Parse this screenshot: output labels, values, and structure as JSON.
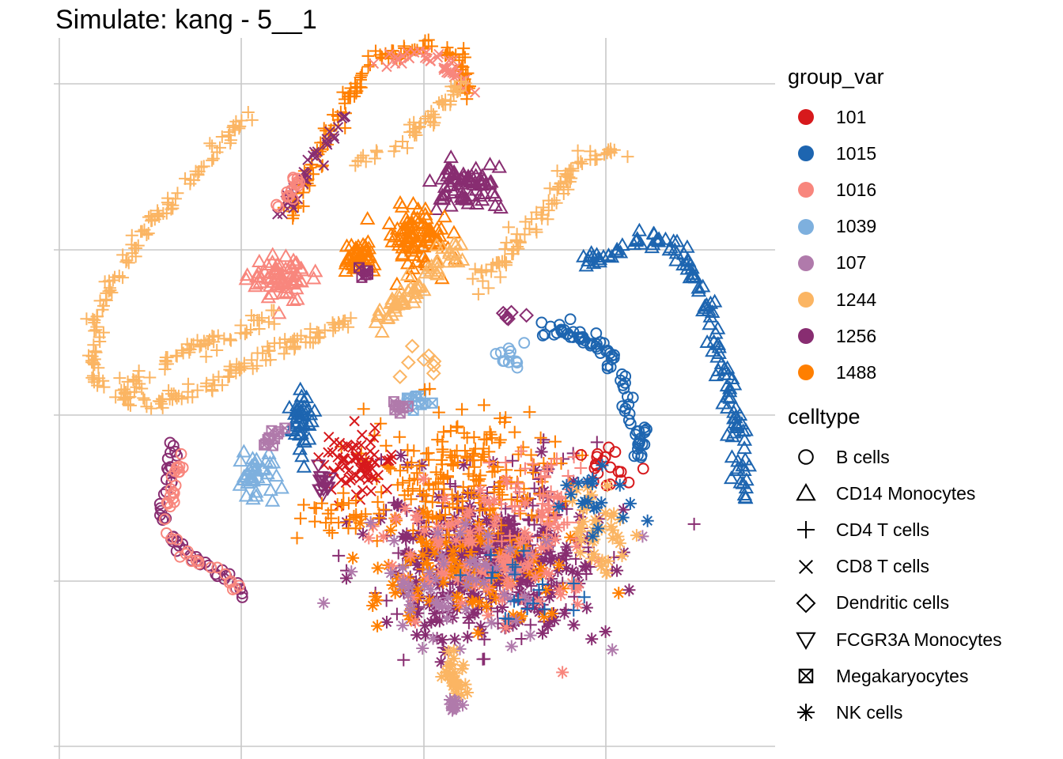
{
  "chart_data": {
    "type": "scatter",
    "title": "Simulate: kang - 5__1",
    "xlabel": "",
    "ylabel": "",
    "grid": true,
    "legend_placement": "right",
    "tick_labels_shown": false,
    "group_legend": {
      "title": "group_var",
      "entries": [
        {
          "label": "101",
          "color": "#d7191c"
        },
        {
          "label": "1015",
          "color": "#1d65b0"
        },
        {
          "label": "1016",
          "color": "#f8867d"
        },
        {
          "label": "1039",
          "color": "#7eb0de"
        },
        {
          "label": "107",
          "color": "#b07aab"
        },
        {
          "label": "1244",
          "color": "#fbb563"
        },
        {
          "label": "1256",
          "color": "#882d71"
        },
        {
          "label": "1488",
          "color": "#ff7f00"
        }
      ]
    },
    "shape_legend": {
      "title": "celltype",
      "entries": [
        {
          "label": "B cells",
          "shape": "circle"
        },
        {
          "label": "CD14 Monocytes",
          "shape": "triangle-up"
        },
        {
          "label": "CD4 T cells",
          "shape": "plus"
        },
        {
          "label": "CD8 T cells",
          "shape": "cross"
        },
        {
          "label": "Dendritic cells",
          "shape": "diamond"
        },
        {
          "label": "FCGR3A Monocytes",
          "shape": "triangle-down"
        },
        {
          "label": "Megakaryocytes",
          "shape": "square-cross"
        },
        {
          "label": "NK cells",
          "shape": "asterisk"
        }
      ]
    },
    "xlim": [
      0,
      100
    ],
    "ylim": [
      0,
      100
    ],
    "clusters": [
      {
        "group": "1244",
        "shape": "plus",
        "kind": "path",
        "n": 220,
        "spread": 1.1,
        "points": [
          [
            26,
            89
          ],
          [
            20,
            82
          ],
          [
            12,
            73
          ],
          [
            5,
            61
          ],
          [
            5,
            52
          ],
          [
            12,
            48
          ],
          [
            21,
            51
          ],
          [
            30,
            56
          ],
          [
            41,
            60
          ]
        ]
      },
      {
        "group": "1488",
        "shape": "plus",
        "kind": "path",
        "n": 130,
        "spread": 1.0,
        "points": [
          [
            32,
            75
          ],
          [
            36,
            83
          ],
          [
            40,
            91
          ],
          [
            44,
            97
          ],
          [
            51,
            99
          ],
          [
            56,
            97
          ],
          [
            57,
            92
          ]
        ]
      },
      {
        "group": "1016",
        "shape": "cross",
        "kind": "path",
        "n": 40,
        "spread": 1.2,
        "points": [
          [
            44,
            96
          ],
          [
            49,
            98
          ],
          [
            55,
            96
          ],
          [
            57,
            92
          ]
        ]
      },
      {
        "group": "1256",
        "shape": "cross",
        "kind": "path",
        "n": 35,
        "spread": 1.0,
        "points": [
          [
            31,
            75
          ],
          [
            34,
            80
          ],
          [
            37,
            85
          ],
          [
            40,
            89
          ]
        ]
      },
      {
        "group": "1016",
        "shape": "circle",
        "kind": "path",
        "n": 18,
        "spread": 0.8,
        "points": [
          [
            31,
            76
          ],
          [
            33,
            80
          ]
        ]
      },
      {
        "group": "1244",
        "shape": "plus",
        "kind": "path",
        "n": 50,
        "spread": 1.0,
        "points": [
          [
            41,
            82
          ],
          [
            47,
            85
          ],
          [
            51,
            88
          ],
          [
            54,
            91
          ],
          [
            56,
            94
          ]
        ]
      },
      {
        "group": "1256",
        "shape": "triangle-up",
        "kind": "blob",
        "n": 70,
        "cx": 57,
        "cy": 79,
        "rx": 5,
        "ry": 3
      },
      {
        "group": "1488",
        "shape": "triangle-up",
        "kind": "blob",
        "n": 90,
        "cx": 50,
        "cy": 72,
        "rx": 5,
        "ry": 4
      },
      {
        "group": "1488",
        "shape": "triangle-up",
        "kind": "blob",
        "n": 40,
        "cx": 42,
        "cy": 69,
        "rx": 3,
        "ry": 2
      },
      {
        "group": "1256",
        "shape": "square-cross",
        "kind": "blob",
        "n": 6,
        "cx": 43,
        "cy": 67,
        "rx": 1,
        "ry": 1
      },
      {
        "group": "1016",
        "shape": "triangle-up",
        "kind": "blob",
        "n": 70,
        "cx": 31,
        "cy": 66,
        "rx": 4,
        "ry": 3
      },
      {
        "group": "1244",
        "shape": "plus",
        "kind": "path",
        "n": 90,
        "spread": 1.4,
        "points": [
          [
            58,
            65
          ],
          [
            63,
            70
          ],
          [
            67,
            74
          ],
          [
            70,
            79
          ],
          [
            72,
            82
          ],
          [
            75,
            84
          ],
          [
            78,
            84
          ]
        ]
      },
      {
        "group": "1244",
        "shape": "triangle-up",
        "kind": "path",
        "n": 60,
        "spread": 1.5,
        "points": [
          [
            45,
            60
          ],
          [
            49,
            64
          ],
          [
            53,
            68
          ],
          [
            56,
            70
          ]
        ]
      },
      {
        "group": "1244",
        "shape": "plus",
        "kind": "path",
        "n": 60,
        "spread": 1.3,
        "points": [
          [
            10,
            51
          ],
          [
            14,
            54
          ],
          [
            18,
            56
          ],
          [
            24,
            58
          ],
          [
            30,
            61
          ]
        ]
      },
      {
        "group": "1015",
        "shape": "triangle-up",
        "kind": "path",
        "n": 130,
        "spread": 1.2,
        "points": [
          [
            73,
            68
          ],
          [
            78,
            70
          ],
          [
            83,
            72
          ],
          [
            87,
            70
          ],
          [
            90,
            64
          ],
          [
            92,
            57
          ],
          [
            94,
            49
          ],
          [
            95,
            41
          ],
          [
            96,
            35
          ]
        ]
      },
      {
        "group": "1015",
        "shape": "circle",
        "kind": "path",
        "n": 80,
        "spread": 1.1,
        "points": [
          [
            68,
            59
          ],
          [
            73,
            58
          ],
          [
            77,
            55
          ],
          [
            79,
            50
          ],
          [
            81,
            45
          ],
          [
            81,
            41
          ]
        ]
      },
      {
        "group": "1015",
        "shape": "triangle-up",
        "kind": "blob",
        "n": 40,
        "cx": 34,
        "cy": 45,
        "rx": 2,
        "ry": 6
      },
      {
        "group": "1039",
        "shape": "triangle-up",
        "kind": "blob",
        "n": 40,
        "cx": 27,
        "cy": 38,
        "rx": 3,
        "ry": 3
      },
      {
        "group": "107",
        "shape": "square-cross",
        "kind": "blob",
        "n": 10,
        "cx": 29,
        "cy": 43,
        "rx": 2,
        "ry": 2
      },
      {
        "group": "1039",
        "shape": "square-cross",
        "kind": "blob",
        "n": 10,
        "cx": 50,
        "cy": 49,
        "rx": 2,
        "ry": 1
      },
      {
        "group": "107",
        "shape": "square-cross",
        "kind": "blob",
        "n": 8,
        "cx": 47,
        "cy": 48,
        "rx": 2,
        "ry": 1
      },
      {
        "group": "1256",
        "shape": "circle",
        "kind": "path",
        "n": 50,
        "spread": 0.9,
        "points": [
          [
            16,
            43
          ],
          [
            15,
            38
          ],
          [
            14,
            33
          ],
          [
            17,
            28
          ],
          [
            20,
            26
          ],
          [
            23,
            24
          ],
          [
            26,
            21
          ]
        ]
      },
      {
        "group": "1016",
        "shape": "circle",
        "kind": "path",
        "n": 40,
        "spread": 0.9,
        "points": [
          [
            17,
            42
          ],
          [
            16,
            37
          ],
          [
            15,
            31
          ],
          [
            18,
            27
          ],
          [
            22,
            25
          ],
          [
            25,
            22
          ]
        ]
      },
      {
        "group": "1256",
        "shape": "asterisk",
        "kind": "blob",
        "n": 260,
        "cx": 60,
        "cy": 26,
        "rx": 15,
        "ry": 11
      },
      {
        "group": "1256",
        "shape": "plus",
        "kind": "blob",
        "n": 220,
        "cx": 60,
        "cy": 27,
        "rx": 15,
        "ry": 11
      },
      {
        "group": "1488",
        "shape": "plus",
        "kind": "blob",
        "n": 220,
        "cx": 57,
        "cy": 38,
        "rx": 14,
        "ry": 10
      },
      {
        "group": "1488",
        "shape": "asterisk",
        "kind": "blob",
        "n": 100,
        "cx": 55,
        "cy": 24,
        "rx": 14,
        "ry": 8
      },
      {
        "group": "1016",
        "shape": "asterisk",
        "kind": "blob",
        "n": 110,
        "cx": 62,
        "cy": 26,
        "rx": 15,
        "ry": 10
      },
      {
        "group": "107",
        "shape": "asterisk",
        "kind": "blob",
        "n": 60,
        "cx": 55,
        "cy": 24,
        "rx": 14,
        "ry": 9
      },
      {
        "group": "101",
        "shape": "cross",
        "kind": "blob",
        "n": 70,
        "cx": 42,
        "cy": 40,
        "rx": 5,
        "ry": 5
      },
      {
        "group": "1016",
        "shape": "plus",
        "kind": "blob",
        "n": 50,
        "cx": 68,
        "cy": 35,
        "rx": 7,
        "ry": 7
      },
      {
        "group": "101",
        "shape": "circle",
        "kind": "blob",
        "n": 20,
        "cx": 76,
        "cy": 40,
        "rx": 4,
        "ry": 4
      },
      {
        "group": "1244",
        "shape": "asterisk",
        "kind": "blob",
        "n": 40,
        "cx": 76,
        "cy": 30,
        "rx": 4,
        "ry": 6
      },
      {
        "group": "1015",
        "shape": "plus",
        "kind": "blob",
        "n": 20,
        "cx": 65,
        "cy": 22,
        "rx": 8,
        "ry": 5
      },
      {
        "group": "1244",
        "shape": "asterisk",
        "kind": "blob",
        "n": 30,
        "cx": 55,
        "cy": 10,
        "rx": 1.5,
        "ry": 4
      },
      {
        "group": "107",
        "shape": "asterisk",
        "kind": "blob",
        "n": 10,
        "cx": 55,
        "cy": 6,
        "rx": 1,
        "ry": 1.5
      },
      {
        "group": "1256",
        "shape": "triangle-down",
        "kind": "blob",
        "n": 14,
        "cx": 37,
        "cy": 37,
        "rx": 2,
        "ry": 3
      },
      {
        "group": "1244",
        "shape": "diamond",
        "kind": "blob",
        "n": 8,
        "cx": 51,
        "cy": 55,
        "rx": 3,
        "ry": 2
      },
      {
        "group": "1256",
        "shape": "diamond",
        "kind": "blob",
        "n": 6,
        "cx": 63,
        "cy": 61,
        "rx": 2,
        "ry": 1
      },
      {
        "group": "1039",
        "shape": "circle",
        "kind": "blob",
        "n": 12,
        "cx": 63,
        "cy": 55,
        "rx": 2,
        "ry": 2
      },
      {
        "group": "1488",
        "shape": "plus",
        "kind": "blob",
        "n": 30,
        "cx": 40,
        "cy": 33,
        "rx": 6,
        "ry": 3
      },
      {
        "group": "1015",
        "shape": "asterisk",
        "kind": "blob",
        "n": 20,
        "cx": 75,
        "cy": 36,
        "rx": 5,
        "ry": 6
      }
    ]
  }
}
